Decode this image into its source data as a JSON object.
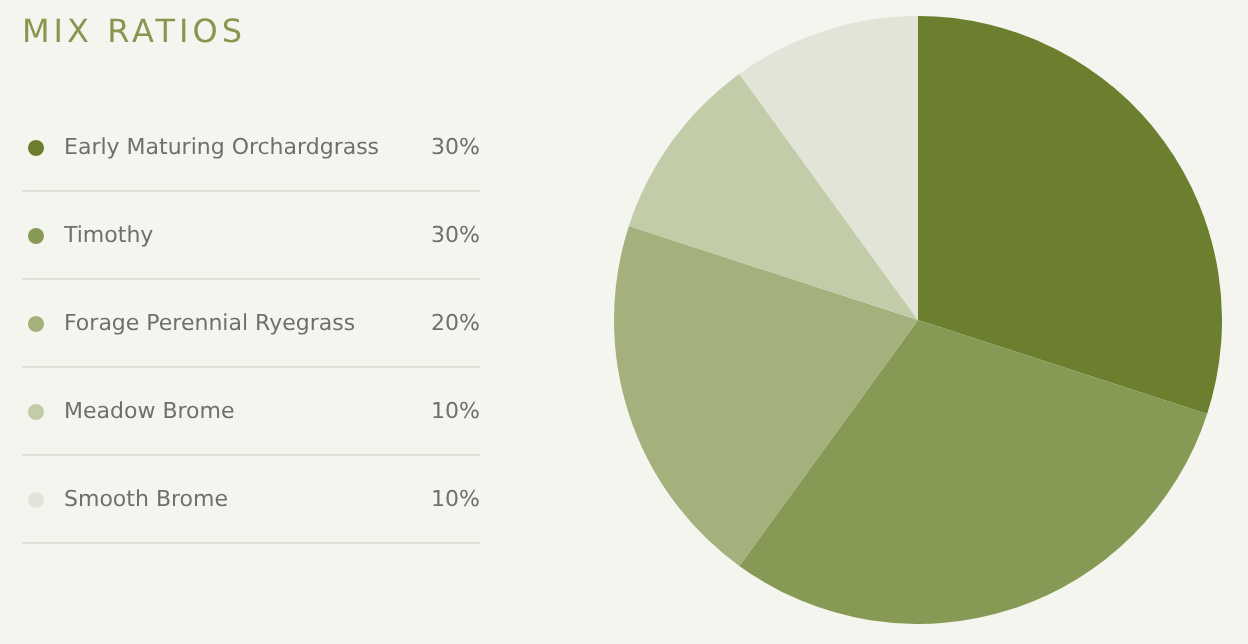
{
  "chart_data": {
    "type": "pie",
    "title": "MIX RATIOS",
    "categories": [
      "Early Maturing Orchardgrass",
      "Timothy",
      "Forage Perennial Ryegrass",
      "Meadow Brome",
      "Smooth Brome"
    ],
    "values": [
      30,
      30,
      20,
      10,
      10
    ],
    "value_labels": [
      "30%",
      "30%",
      "20%",
      "10%",
      "10%"
    ],
    "colors": [
      "#6b7f2e",
      "#879a55",
      "#a5b17d",
      "#c3cca8",
      "#e1e4d6"
    ],
    "legend": "left"
  }
}
